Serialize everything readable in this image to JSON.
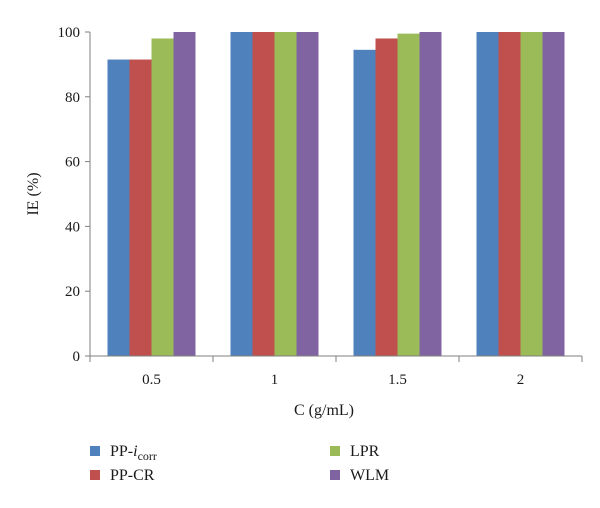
{
  "chart_data": {
    "type": "bar",
    "xlabel": "C (g/mL)",
    "ylabel": "IE (%)",
    "ylim": [
      0,
      100
    ],
    "yticks": [
      0,
      20,
      40,
      60,
      80,
      100
    ],
    "categories": [
      "0.5",
      "1",
      "1.5",
      "2"
    ],
    "grid": false,
    "legend_position": "bottom",
    "series": [
      {
        "name": "PP-icorr",
        "legend_main": "PP-",
        "legend_italic": "i",
        "legend_sub": "corr",
        "color": "#4f81bd",
        "values": [
          91.5,
          100,
          94.5,
          100
        ]
      },
      {
        "name": "PP-CR",
        "legend_main": "PP-CR",
        "legend_italic": "",
        "legend_sub": "",
        "color": "#c0504d",
        "values": [
          91.5,
          100,
          98,
          100
        ]
      },
      {
        "name": "LPR",
        "legend_main": "LPR",
        "legend_italic": "",
        "legend_sub": "",
        "color": "#9bbb59",
        "values": [
          98,
          100,
          99.5,
          100
        ]
      },
      {
        "name": "WLM",
        "legend_main": "WLM",
        "legend_italic": "",
        "legend_sub": "",
        "color": "#8064a2",
        "values": [
          100,
          100,
          100,
          100
        ]
      }
    ]
  }
}
